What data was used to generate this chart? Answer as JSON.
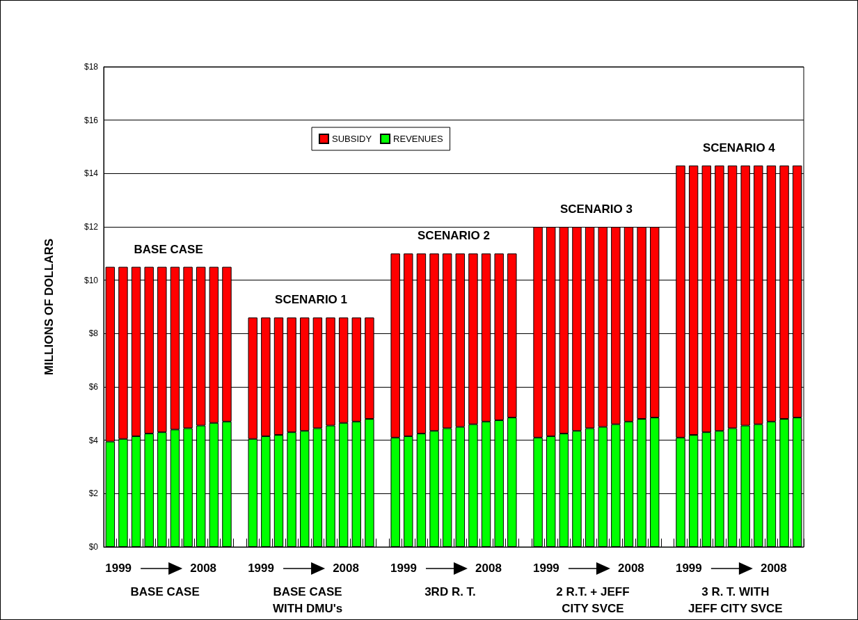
{
  "chart_data": {
    "type": "bar",
    "stacked": true,
    "ylabel": "MILLIONS OF DOLLARS",
    "categories": [
      null,
      null,
      null,
      null,
      null,
      null,
      null,
      null,
      null,
      null,
      null,
      null,
      null,
      null,
      null,
      null,
      null,
      null,
      null,
      null,
      null,
      null,
      null,
      null,
      null,
      null,
      null,
      null,
      null,
      null,
      null,
      null,
      null,
      null,
      null,
      null,
      null,
      null,
      null,
      null,
      null,
      null,
      null,
      null,
      null,
      null,
      null,
      null,
      null,
      null,
      null,
      null,
      null,
      null
    ],
    "series": [
      {
        "name": "REVENUES",
        "color": "#00ff00",
        "values": [
          3.95,
          4.05,
          4.15,
          4.25,
          4.3,
          4.4,
          4.45,
          4.55,
          4.65,
          4.7,
          null,
          4.05,
          4.15,
          4.2,
          4.3,
          4.35,
          4.45,
          4.55,
          4.65,
          4.7,
          4.8,
          null,
          4.1,
          4.15,
          4.25,
          4.35,
          4.45,
          4.5,
          4.6,
          4.7,
          4.75,
          4.85,
          null,
          4.1,
          4.15,
          4.25,
          4.35,
          4.45,
          4.5,
          4.6,
          4.7,
          4.8,
          4.85,
          null,
          4.1,
          4.2,
          4.3,
          4.35,
          4.45,
          4.55,
          4.6,
          4.7,
          4.8,
          4.85
        ]
      },
      {
        "name": "SUBSIDY",
        "color": "#ff0000",
        "values": [
          6.55,
          6.45,
          6.35,
          6.25,
          6.2,
          6.1,
          6.05,
          5.95,
          5.85,
          5.8,
          null,
          4.55,
          4.45,
          4.4,
          4.3,
          4.25,
          4.15,
          4.05,
          3.95,
          3.9,
          3.8,
          null,
          6.9,
          6.85,
          6.75,
          6.65,
          6.55,
          6.5,
          6.4,
          6.3,
          6.25,
          6.15,
          null,
          7.9,
          7.85,
          7.75,
          7.65,
          7.55,
          7.5,
          7.4,
          7.3,
          7.2,
          7.15,
          null,
          10.2,
          10.1,
          10.0,
          9.95,
          9.85,
          9.75,
          9.7,
          9.6,
          9.5,
          9.45
        ]
      }
    ],
    "ylim": [
      0,
      18
    ],
    "yticks": [
      {
        "value": 0,
        "label": "$0"
      },
      {
        "value": 2,
        "label": "$2"
      },
      {
        "value": 4,
        "label": "$4"
      },
      {
        "value": 6,
        "label": "$6"
      },
      {
        "value": 8,
        "label": "$8"
      },
      {
        "value": 10,
        "label": "$10"
      },
      {
        "value": 12,
        "label": "$12"
      },
      {
        "value": 14,
        "label": "$14"
      },
      {
        "value": 16,
        "label": "$16"
      },
      {
        "value": 18,
        "label": "$18"
      }
    ],
    "grid": "y",
    "legend": "top",
    "annotations": [
      "BASE CASE",
      "1999",
      "2008",
      "BASE CASE",
      "SCENARIO 1",
      "1999",
      "2008",
      "BASE CASE\nWITH DMU's",
      "SCENARIO 2",
      "1999",
      "2008",
      "3RD R. T.",
      "SCENARIO 3",
      "1999",
      "2008",
      "2 R.T. + JEFF\nCITY SVCE",
      "SCENARIO 4",
      "1999",
      "2008",
      "3 R. T. WITH\nJEFF CITY SVCE"
    ]
  }
}
